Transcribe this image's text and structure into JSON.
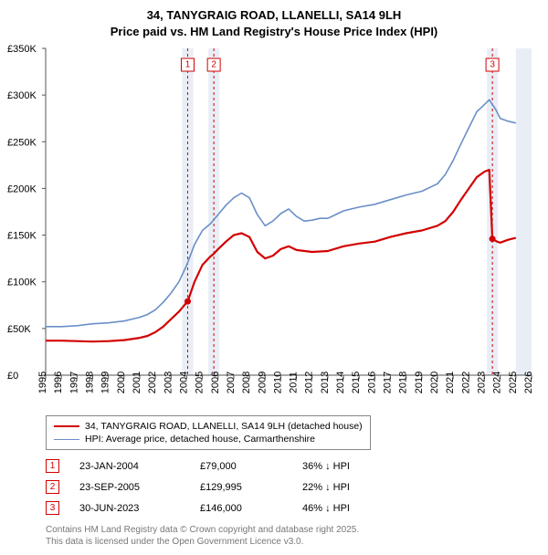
{
  "title_line1": "34, TANYGRAIG ROAD, LLANELLI, SA14 9LH",
  "title_line2": "Price paid vs. HM Land Registry's House Price Index (HPI)",
  "chart": {
    "type": "line",
    "x_domain": [
      1995,
      2026
    ],
    "y_domain": [
      0,
      350000
    ],
    "y_ticks": [
      0,
      50000,
      100000,
      150000,
      200000,
      250000,
      300000,
      350000
    ],
    "y_tick_labels": [
      "£0",
      "£50K",
      "£100K",
      "£150K",
      "£200K",
      "£250K",
      "£300K",
      "£350K"
    ],
    "x_ticks": [
      1995,
      1996,
      1997,
      1998,
      1999,
      2000,
      2001,
      2002,
      2003,
      2004,
      2005,
      2006,
      2007,
      2008,
      2009,
      2010,
      2011,
      2012,
      2013,
      2014,
      2015,
      2016,
      2017,
      2018,
      2019,
      2020,
      2021,
      2022,
      2023,
      2024,
      2025,
      2026
    ],
    "plot_bg": "#ffffff",
    "marker_band_color": "#e9eef6",
    "marker_dash_color": "#d30000",
    "precrop_band_color": "#e9eef6",
    "axis_color": "#555555",
    "tick_color": "#555555",
    "series": [
      {
        "key": "price_paid",
        "label": "34, TANYGRAIG ROAD, LLANELLI, SA14 9LH (detached house)",
        "color": "#d30000",
        "width": 2.2,
        "points": [
          [
            1995.0,
            37000
          ],
          [
            1996.0,
            37000
          ],
          [
            1997.0,
            36500
          ],
          [
            1998.0,
            36000
          ],
          [
            1999.0,
            36500
          ],
          [
            2000.0,
            37500
          ],
          [
            2001.0,
            40000
          ],
          [
            2001.5,
            42000
          ],
          [
            2002.0,
            46000
          ],
          [
            2002.5,
            52000
          ],
          [
            2003.0,
            60000
          ],
          [
            2003.5,
            68000
          ],
          [
            2004.0,
            78000
          ],
          [
            2004.06,
            79000
          ],
          [
            2004.5,
            100000
          ],
          [
            2005.0,
            118000
          ],
          [
            2005.5,
            127000
          ],
          [
            2005.73,
            129995
          ],
          [
            2006.0,
            135000
          ],
          [
            2006.5,
            143000
          ],
          [
            2007.0,
            150000
          ],
          [
            2007.5,
            152000
          ],
          [
            2008.0,
            148000
          ],
          [
            2008.5,
            132000
          ],
          [
            2009.0,
            125000
          ],
          [
            2009.5,
            128000
          ],
          [
            2010.0,
            135000
          ],
          [
            2010.5,
            138000
          ],
          [
            2011.0,
            134000
          ],
          [
            2012.0,
            132000
          ],
          [
            2013.0,
            133000
          ],
          [
            2014.0,
            138000
          ],
          [
            2015.0,
            141000
          ],
          [
            2016.0,
            143000
          ],
          [
            2017.0,
            148000
          ],
          [
            2018.0,
            152000
          ],
          [
            2019.0,
            155000
          ],
          [
            2020.0,
            160000
          ],
          [
            2020.5,
            165000
          ],
          [
            2021.0,
            175000
          ],
          [
            2021.5,
            188000
          ],
          [
            2022.0,
            200000
          ],
          [
            2022.5,
            212000
          ],
          [
            2023.0,
            218000
          ],
          [
            2023.3,
            220000
          ],
          [
            2023.5,
            146000
          ],
          [
            2023.8,
            143000
          ],
          [
            2024.0,
            142000
          ],
          [
            2024.5,
            145000
          ],
          [
            2025.0,
            147000
          ]
        ],
        "markers": [
          {
            "x": 2004.06,
            "y": 79000
          },
          {
            "x": 2023.5,
            "y": 146000
          }
        ]
      },
      {
        "key": "hpi",
        "label": "HPI: Average price, detached house, Carmarthenshire",
        "color": "#6a8fc7",
        "width": 1.6,
        "points": [
          [
            1995.0,
            52000
          ],
          [
            1996.0,
            52000
          ],
          [
            1997.0,
            53000
          ],
          [
            1998.0,
            55000
          ],
          [
            1999.0,
            56000
          ],
          [
            2000.0,
            58000
          ],
          [
            2001.0,
            62000
          ],
          [
            2001.5,
            65000
          ],
          [
            2002.0,
            70000
          ],
          [
            2002.5,
            78000
          ],
          [
            2003.0,
            88000
          ],
          [
            2003.5,
            100000
          ],
          [
            2004.0,
            118000
          ],
          [
            2004.5,
            140000
          ],
          [
            2005.0,
            155000
          ],
          [
            2005.5,
            162000
          ],
          [
            2006.0,
            172000
          ],
          [
            2006.5,
            182000
          ],
          [
            2007.0,
            190000
          ],
          [
            2007.5,
            195000
          ],
          [
            2008.0,
            190000
          ],
          [
            2008.5,
            172000
          ],
          [
            2009.0,
            160000
          ],
          [
            2009.5,
            165000
          ],
          [
            2010.0,
            173000
          ],
          [
            2010.5,
            178000
          ],
          [
            2011.0,
            170000
          ],
          [
            2011.5,
            165000
          ],
          [
            2012.0,
            166000
          ],
          [
            2012.5,
            168000
          ],
          [
            2013.0,
            168000
          ],
          [
            2013.5,
            172000
          ],
          [
            2014.0,
            176000
          ],
          [
            2014.5,
            178000
          ],
          [
            2015.0,
            180000
          ],
          [
            2016.0,
            183000
          ],
          [
            2017.0,
            188000
          ],
          [
            2018.0,
            193000
          ],
          [
            2019.0,
            197000
          ],
          [
            2020.0,
            205000
          ],
          [
            2020.5,
            215000
          ],
          [
            2021.0,
            230000
          ],
          [
            2021.5,
            248000
          ],
          [
            2022.0,
            265000
          ],
          [
            2022.5,
            282000
          ],
          [
            2023.0,
            290000
          ],
          [
            2023.3,
            295000
          ],
          [
            2023.7,
            285000
          ],
          [
            2024.0,
            275000
          ],
          [
            2024.5,
            272000
          ],
          [
            2025.0,
            270000
          ]
        ]
      }
    ],
    "event_markers": [
      {
        "n": "1",
        "x": 2004.06
      },
      {
        "n": "2",
        "x": 2005.73
      },
      {
        "n": "3",
        "x": 2023.5
      }
    ],
    "precrop_band": [
      2025.0,
      2026.0
    ]
  },
  "legend": [
    {
      "color": "#d30000",
      "width": 2.2,
      "label": "34, TANYGRAIG ROAD, LLANELLI, SA14 9LH (detached house)"
    },
    {
      "color": "#6a8fc7",
      "width": 1.6,
      "label": "HPI: Average price, detached house, Carmarthenshire"
    }
  ],
  "events": [
    {
      "n": "1",
      "date": "23-JAN-2004",
      "price": "£79,000",
      "delta": "36% ↓ HPI"
    },
    {
      "n": "2",
      "date": "23-SEP-2005",
      "price": "£129,995",
      "delta": "22% ↓ HPI"
    },
    {
      "n": "3",
      "date": "30-JUN-2023",
      "price": "£146,000",
      "delta": "46% ↓ HPI"
    }
  ],
  "footnote_line1": "Contains HM Land Registry data © Crown copyright and database right 2025.",
  "footnote_line2": "This data is licensed under the Open Government Licence v3.0."
}
